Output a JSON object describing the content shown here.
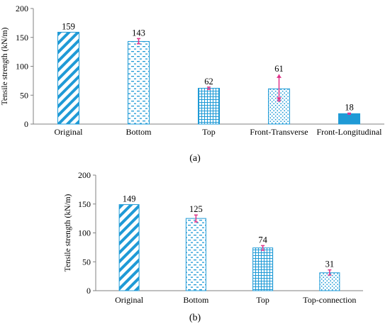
{
  "colors": {
    "bar_stroke": "#1f9ad6",
    "error_bar": "#e0338a",
    "axis": "#808080",
    "solid_fill": "#1f9ad6"
  },
  "chart_data": [
    {
      "type": "bar",
      "panel_label": "(a)",
      "ylabel": "Tensile strength (kN/m)",
      "ylim": [
        0,
        200
      ],
      "yticks": [
        0,
        50,
        100,
        150,
        200
      ],
      "grid": false,
      "categories": [
        "Original",
        "Bottom",
        "Top",
        "Front-Transverse",
        "Front-Longitudinal"
      ],
      "values": [
        159,
        143,
        62,
        61,
        18
      ],
      "value_labels": [
        "159",
        "143",
        "62",
        "61",
        "18"
      ],
      "error_bars": [
        null,
        [
          139,
          148
        ],
        [
          60,
          64
        ],
        [
          40,
          86
        ],
        [
          17,
          19
        ]
      ],
      "patterns": [
        "diagonal-stripes",
        "dashes",
        "grid",
        "dots",
        "solid"
      ]
    },
    {
      "type": "bar",
      "panel_label": "(b)",
      "ylabel": "Tensile strength (kN/m)",
      "ylim": [
        0,
        200
      ],
      "yticks": [
        0,
        50,
        100,
        150,
        200
      ],
      "grid": false,
      "categories": [
        "Original",
        "Bottom",
        "Top",
        "Top-connection"
      ],
      "values": [
        149,
        125,
        74,
        31
      ],
      "value_labels": [
        "149",
        "125",
        "74",
        "31"
      ],
      "error_bars": [
        null,
        [
          119,
          131
        ],
        [
          70,
          78
        ],
        [
          27,
          36
        ]
      ],
      "patterns": [
        "diagonal-stripes",
        "dashes",
        "grid",
        "dots"
      ]
    }
  ]
}
